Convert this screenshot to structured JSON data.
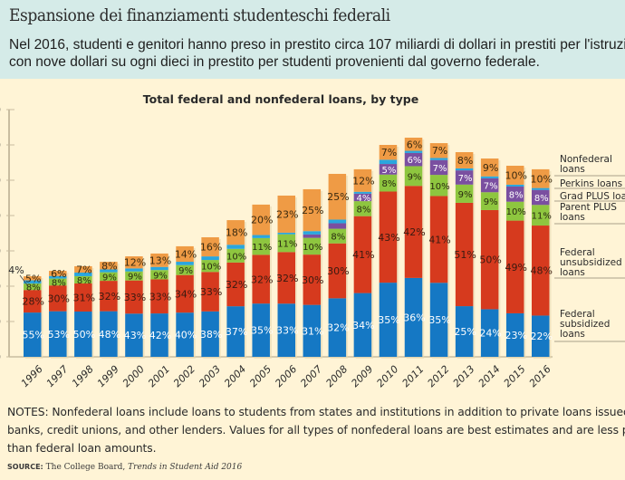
{
  "header": {
    "title": "Espansione dei finanziamenti studenteschi federali",
    "subtitle_line1": "Nel 2016, studenti e genitori hanno preso in prestito circa 107 miliardi di dollari in prestiti per l'istruzione",
    "subtitle_line2": "con nove dollari su ogni dieci in prestito per studenti provenienti dal governo federale."
  },
  "colors": {
    "header_bg": "#d5ebe8",
    "page_bg": "#fff4d6",
    "federal_subsidized": "#1578c4",
    "federal_unsubsidized": "#d63a1e",
    "parent_plus": "#8ec63f",
    "grad_plus": "#7a4fa0",
    "perkins": "#2aa6de",
    "nonfederal": "#ef9b45"
  },
  "chart_data": {
    "type": "bar",
    "stacked": true,
    "title": "Total federal and nonfederal loans, by type",
    "xlabel": "",
    "ylabel": "",
    "ylim": [
      0,
      140
    ],
    "y_ticks": [
      0,
      20,
      40,
      60,
      80,
      100,
      120,
      140
    ],
    "y_tick_labels_visible": [
      "0",
      "0",
      "0",
      "0",
      "0",
      "0",
      "0",
      "0"
    ],
    "grid": false,
    "legend_position": "right",
    "categories": [
      "1996",
      "1997",
      "1998",
      "1999",
      "2000",
      "2001",
      "2002",
      "2003",
      "2004",
      "2005",
      "2006",
      "2007",
      "2008",
      "2009",
      "2010",
      "2011",
      "2012",
      "2013",
      "2014",
      "2015",
      "2016"
    ],
    "totals": [
      45.6,
      48.7,
      51.3,
      53.8,
      56.9,
      58.5,
      62.6,
      67.7,
      77.4,
      86.2,
      91.3,
      94.9,
      103.6,
      106.2,
      120.0,
      124.1,
      121.0,
      115.9,
      112.3,
      108.2,
      106.2
    ],
    "series": [
      {
        "name": "Federal subsidized loans",
        "key": "federal_subsidized",
        "label_color": "#ffffff",
        "values": [
          55,
          53,
          50,
          48,
          43,
          42,
          40,
          38,
          37,
          35,
          33,
          31,
          32,
          34,
          35,
          36,
          35,
          25,
          24,
          23,
          22
        ],
        "labels": [
          "55%",
          "53%",
          "50%",
          "48%",
          "43%",
          "42%",
          "40%",
          "38%",
          "37%",
          "35%",
          "33%",
          "31%",
          "32%",
          "34%",
          "35%",
          "36%",
          "35%",
          "25%",
          "24%",
          "23%",
          "22%"
        ]
      },
      {
        "name": "Federal unsubsidized loans",
        "key": "federal_unsubsidized",
        "label_color": "#3a1a10",
        "values": [
          28,
          30,
          31,
          32,
          33,
          33,
          34,
          33,
          32,
          32,
          32,
          30,
          30,
          41,
          43,
          42,
          41,
          51,
          50,
          49,
          48
        ],
        "labels": [
          "28%",
          "30%",
          "31%",
          "32%",
          "33%",
          "33%",
          "34%",
          "33%",
          "32%",
          "32%",
          "32%",
          "30%",
          "30%",
          "41%",
          "43%",
          "42%",
          "41%",
          "51%",
          "50%",
          "49%",
          "48%"
        ]
      },
      {
        "name": "Parent PLUS loans",
        "key": "parent_plus",
        "label_color": "#2a2a10",
        "values": [
          8,
          8,
          8,
          9,
          9,
          9,
          9,
          10,
          10,
          11,
          11,
          10,
          8,
          8,
          8,
          9,
          10,
          9,
          9,
          10,
          11
        ],
        "labels": [
          "8%",
          "8%",
          "8%",
          "9%",
          "9%",
          "9%",
          "9%",
          "10%",
          "10%",
          "11%",
          "11%",
          "10%",
          "8%",
          "8%",
          "8%",
          "9%",
          "10%",
          "9%",
          "9%",
          "10%",
          "11%"
        ]
      },
      {
        "name": "Grad PLUS loans",
        "key": "grad_plus",
        "label_color": "#ffffff",
        "values": [
          0,
          0,
          0,
          0,
          0,
          0,
          0,
          0,
          0,
          0,
          0,
          2,
          3,
          4,
          5,
          6,
          7,
          7,
          7,
          8,
          8
        ],
        "labels": [
          "",
          "",
          "",
          "",
          "",
          "",
          "",
          "",
          "",
          "",
          "",
          "",
          "",
          "4%",
          "5%",
          "6%",
          "7%",
          "7%",
          "7%",
          "8%",
          "8%"
        ]
      },
      {
        "name": "Perkins loans",
        "key": "perkins",
        "label_color": "#2a2a2a",
        "values": [
          4,
          3,
          4,
          3,
          3,
          3,
          3,
          3,
          3,
          2,
          1,
          2,
          2,
          1,
          2,
          1,
          1,
          1,
          1,
          1,
          1
        ],
        "labels": [
          "4%",
          "",
          "",
          "",
          "",
          "",
          "",
          "",
          "",
          "",
          "",
          "",
          "",
          "",
          "",
          "",
          "",
          "",
          "",
          "",
          ""
        ]
      },
      {
        "name": "Nonfederal loans",
        "key": "nonfederal",
        "label_color": "#3a2a10",
        "values": [
          5,
          6,
          7,
          8,
          12,
          13,
          14,
          16,
          18,
          20,
          23,
          25,
          25,
          12,
          7,
          6,
          7,
          8,
          9,
          10,
          10
        ],
        "labels": [
          "5%",
          "6%",
          "7%",
          "8%",
          "12%",
          "13%",
          "14%",
          "16%",
          "18%",
          "20%",
          "23%",
          "25%",
          "25%",
          "12%",
          "7%",
          "6%",
          "7%",
          "8%",
          "9%",
          "10%",
          "10%"
        ]
      }
    ],
    "legend": [
      {
        "label": "Nonfederal\nloans",
        "key": "nonfederal"
      },
      {
        "label": "Perkins loans",
        "key": "perkins"
      },
      {
        "label": "Grad PLUS loans",
        "key": "grad_plus"
      },
      {
        "label": "Parent PLUS\nloans",
        "key": "parent_plus"
      },
      {
        "label": "Federal\nunsubsidized\nloans",
        "key": "federal_unsubsidized"
      },
      {
        "label": "Federal\nsubsidized\nloans",
        "key": "federal_subsidized"
      }
    ]
  },
  "notes": {
    "line1": "NOTES: Nonfederal loans include loans to students from states and institutions in addition to private loans issued by",
    "line2": "banks, credit unions, and other lenders. Values for all types of nonfederal loans are best estimates and are less precise",
    "line3": "than federal loan amounts."
  },
  "source": {
    "label": "SOURCE:",
    "publisher": "The College Board,",
    "publication": "Trends in Student Aid 2016"
  }
}
